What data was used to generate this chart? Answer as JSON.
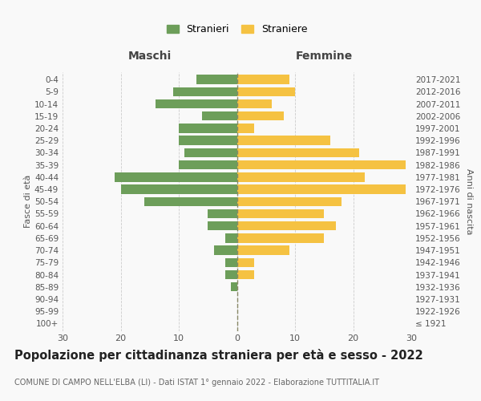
{
  "age_groups": [
    "100+",
    "95-99",
    "90-94",
    "85-89",
    "80-84",
    "75-79",
    "70-74",
    "65-69",
    "60-64",
    "55-59",
    "50-54",
    "45-49",
    "40-44",
    "35-39",
    "30-34",
    "25-29",
    "20-24",
    "15-19",
    "10-14",
    "5-9",
    "0-4"
  ],
  "birth_years": [
    "≤ 1921",
    "1922-1926",
    "1927-1931",
    "1932-1936",
    "1937-1941",
    "1942-1946",
    "1947-1951",
    "1952-1956",
    "1957-1961",
    "1962-1966",
    "1967-1971",
    "1972-1976",
    "1977-1981",
    "1982-1986",
    "1987-1991",
    "1992-1996",
    "1997-2001",
    "2002-2006",
    "2007-2011",
    "2012-2016",
    "2017-2021"
  ],
  "maschi": [
    0,
    0,
    0,
    1,
    2,
    2,
    4,
    2,
    5,
    5,
    16,
    20,
    21,
    10,
    9,
    10,
    10,
    6,
    14,
    11,
    7
  ],
  "femmine": [
    0,
    0,
    0,
    0,
    3,
    3,
    9,
    15,
    17,
    15,
    18,
    29,
    22,
    29,
    21,
    16,
    3,
    8,
    6,
    10,
    9
  ],
  "color_maschi": "#6d9e5a",
  "color_femmine": "#f5c242",
  "xlabel_left": "Maschi",
  "xlabel_right": "Femmine",
  "ylabel_left": "Fasce di età",
  "ylabel_right": "Anni di nascita",
  "xlim": 30,
  "title": "Popolazione per cittadinanza straniera per età e sesso - 2022",
  "subtitle": "COMUNE DI CAMPO NELL'ELBA (LI) - Dati ISTAT 1° gennaio 2022 - Elaborazione TUTTITALIA.IT",
  "legend_stranieri": "Stranieri",
  "legend_straniere": "Straniere",
  "bg_color": "#f9f9f9",
  "grid_color": "#cccccc",
  "dashed_line_color": "#888866",
  "tick_color": "#555555",
  "title_fontsize": 10.5,
  "subtitle_fontsize": 7.0,
  "bar_height": 0.75
}
